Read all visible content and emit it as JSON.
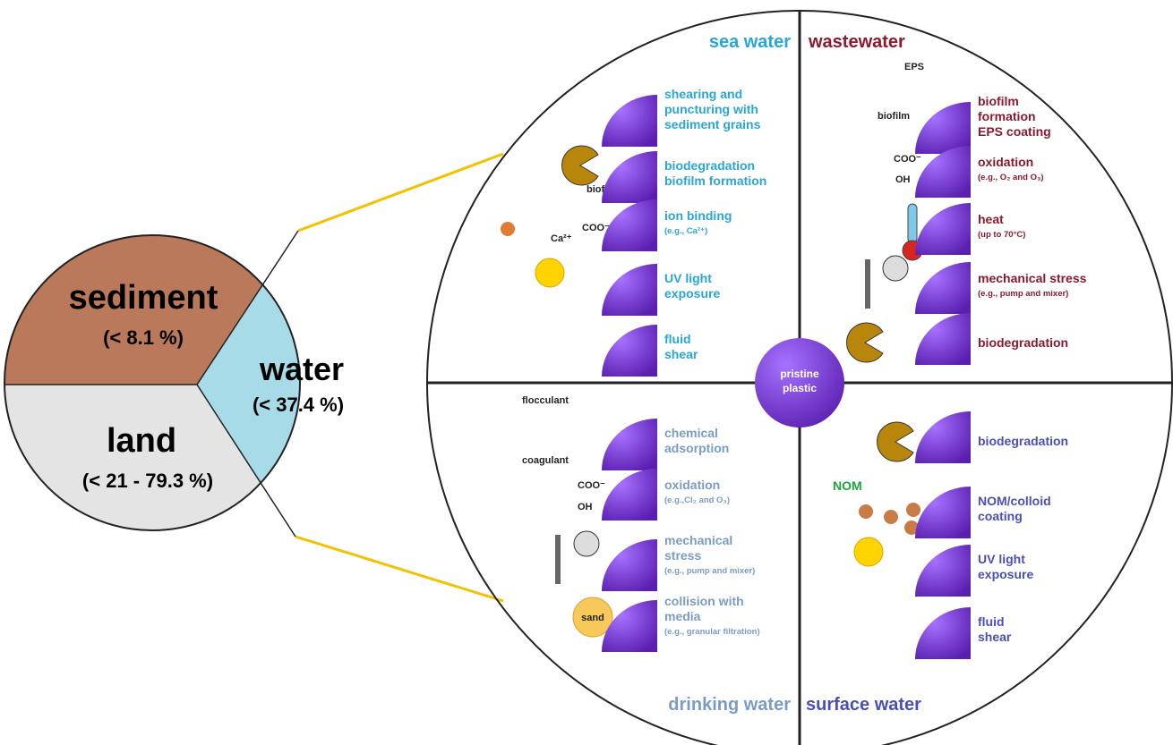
{
  "pie": {
    "segments": [
      {
        "name": "sediment",
        "label": "(< 8.1 %)",
        "color": "#b9795a"
      },
      {
        "name": "water",
        "label": "(< 37.4 %)",
        "color": "#a8dbe8"
      },
      {
        "name": "land",
        "label": "(< 21 - 79.3 %)",
        "color": "#e4e4e4"
      }
    ]
  },
  "center": [
    "pristine",
    "plastic"
  ],
  "quadrants": [
    {
      "title": "sea water",
      "color": "#29a6d8",
      "items": [
        {
          "lines": [
            "shearing and",
            "puncturing with",
            "sediment grains"
          ]
        },
        {
          "lines": [
            "biodegradation",
            "biofilm formation"
          ]
        },
        {
          "lines": [
            "ion binding"
          ],
          "note": "(e.g., Ca²⁺)"
        },
        {
          "lines": [
            "UV light",
            "exposure"
          ]
        },
        {
          "lines": [
            "fluid",
            "shear"
          ]
        }
      ]
    },
    {
      "title": "wastewater",
      "color": "#8b1a2e",
      "items": [
        {
          "lines": [
            "biofilm",
            "formation",
            "EPS coating"
          ]
        },
        {
          "lines": [
            "oxidation"
          ],
          "note": "(e.g., O₂ and O₃)"
        },
        {
          "lines": [
            "heat"
          ],
          "note": "(up to 70°C)"
        },
        {
          "lines": [
            "mechanical stress"
          ],
          "note": "(e.g., pump and mixer)"
        },
        {
          "lines": [
            "biodegradation"
          ]
        }
      ]
    },
    {
      "title": "drinking water",
      "color": "#7a9cc4",
      "items": [
        {
          "lines": [
            "chemical",
            "adsorption"
          ]
        },
        {
          "lines": [
            "oxidation"
          ],
          "note": "(e.g.,Cl₂ and O₃)"
        },
        {
          "lines": [
            "mechanical",
            "stress"
          ],
          "note": "(e.g., pump and mixer)"
        },
        {
          "lines": [
            "collision with",
            "media"
          ],
          "note": "(e.g., granular filtration)"
        }
      ]
    },
    {
      "title": "surface water",
      "color": "#4a4fb8",
      "items": [
        {
          "lines": [
            "biodegradation"
          ]
        },
        {
          "lines": [
            "NOM/colloid",
            "coating"
          ]
        },
        {
          "lines": [
            "UV light",
            "exposure"
          ]
        },
        {
          "lines": [
            "fluid",
            "shear"
          ]
        }
      ]
    }
  ],
  "annotations": [
    "EPS",
    "biofilm",
    "biofilm",
    "COO⁻",
    "OH",
    "Ca²⁺",
    "COO⁻",
    "flocculant",
    "coagulant",
    "COO⁻",
    "OH",
    "sand",
    "NOM"
  ]
}
